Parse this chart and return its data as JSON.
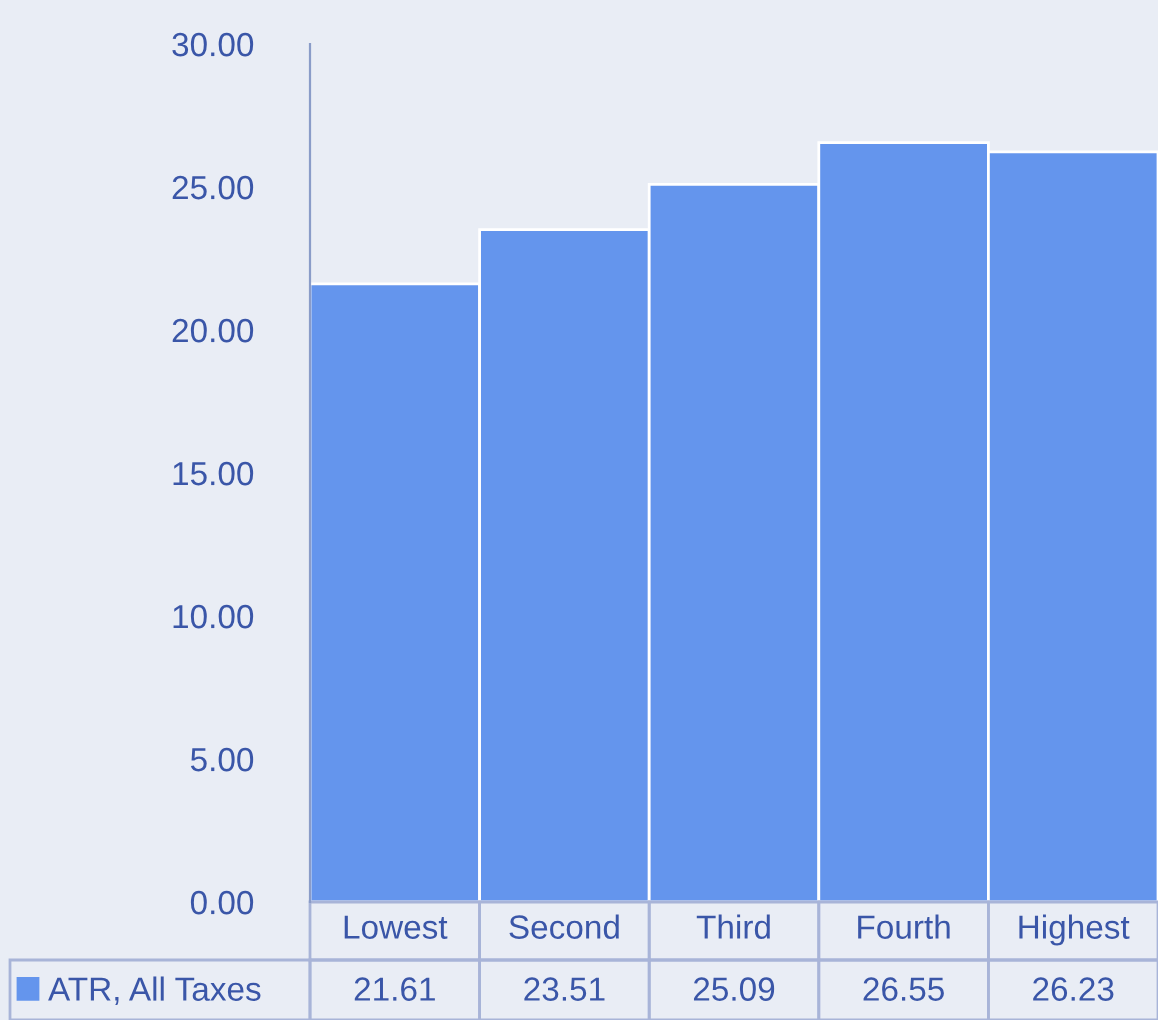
{
  "chart_data": {
    "type": "bar",
    "categories": [
      "Lowest",
      "Second",
      "Third",
      "Fourth",
      "Highest"
    ],
    "series": [
      {
        "name": "ATR, All Taxes",
        "color": "#6495ed",
        "values": [
          21.61,
          23.51,
          25.09,
          26.55,
          26.23
        ]
      }
    ],
    "ylim": [
      0,
      30
    ],
    "yticks": [
      {
        "value": 0,
        "label": "0.00"
      },
      {
        "value": 5,
        "label": "5.00"
      },
      {
        "value": 10,
        "label": "10.00"
      },
      {
        "value": 15,
        "label": "15.00"
      },
      {
        "value": 20,
        "label": "20.00"
      },
      {
        "value": 25,
        "label": "25.00"
      },
      {
        "value": 30,
        "label": "30.00"
      }
    ],
    "data_labels": true,
    "legend": "bottom left",
    "grid": false
  }
}
